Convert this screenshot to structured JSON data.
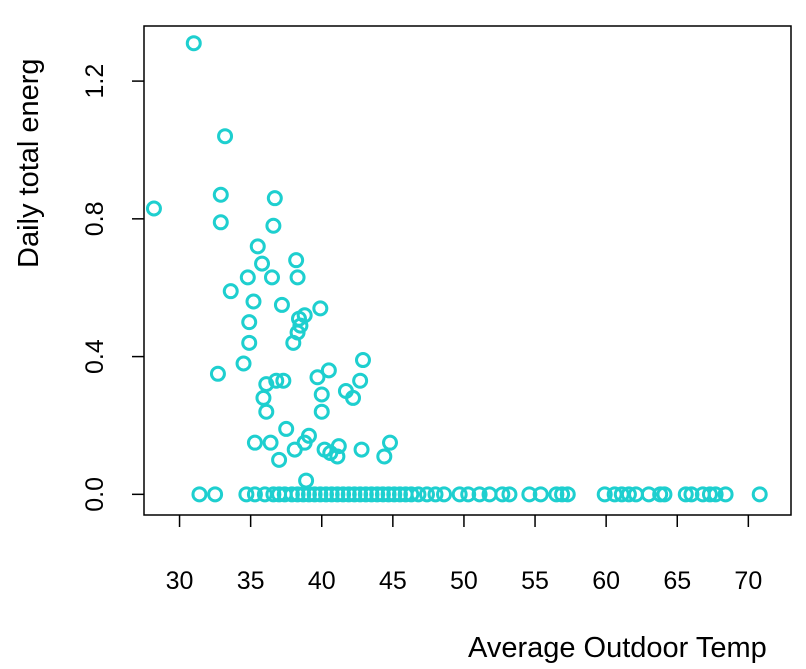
{
  "chart_data": {
    "type": "scatter",
    "xlabel": "Average Outdoor Temp",
    "ylabel": "Daily total energ",
    "xlim": [
      27.5,
      73
    ],
    "ylim": [
      -0.06,
      1.36
    ],
    "x_ticks": [
      30,
      35,
      40,
      45,
      50,
      55,
      60,
      65,
      70
    ],
    "x_tick_labels": [
      "30",
      "35",
      "40",
      "45",
      "50",
      "55",
      "60",
      "65",
      "70"
    ],
    "y_ticks": [
      0.0,
      0.4,
      0.8,
      1.2
    ],
    "y_tick_labels": [
      "0.0",
      "0.4",
      "0.8",
      "1.2"
    ],
    "grid": false,
    "marker": "open-circle",
    "color": "#1ecfcf",
    "points": [
      [
        28.2,
        0.83
      ],
      [
        31.0,
        1.31
      ],
      [
        33.2,
        1.04
      ],
      [
        32.9,
        0.87
      ],
      [
        32.9,
        0.79
      ],
      [
        36.7,
        0.86
      ],
      [
        36.6,
        0.78
      ],
      [
        35.5,
        0.72
      ],
      [
        35.8,
        0.67
      ],
      [
        34.8,
        0.63
      ],
      [
        36.5,
        0.63
      ],
      [
        38.2,
        0.68
      ],
      [
        38.3,
        0.63
      ],
      [
        33.6,
        0.59
      ],
      [
        35.2,
        0.56
      ],
      [
        37.2,
        0.55
      ],
      [
        39.9,
        0.54
      ],
      [
        38.4,
        0.51
      ],
      [
        38.8,
        0.52
      ],
      [
        38.5,
        0.49
      ],
      [
        38.3,
        0.47
      ],
      [
        38.0,
        0.44
      ],
      [
        34.9,
        0.5
      ],
      [
        34.9,
        0.44
      ],
      [
        34.5,
        0.38
      ],
      [
        32.7,
        0.35
      ],
      [
        36.8,
        0.33
      ],
      [
        37.3,
        0.33
      ],
      [
        36.1,
        0.32
      ],
      [
        35.9,
        0.28
      ],
      [
        36.1,
        0.24
      ],
      [
        39.7,
        0.34
      ],
      [
        40.5,
        0.36
      ],
      [
        40.0,
        0.29
      ],
      [
        40.0,
        0.24
      ],
      [
        41.7,
        0.3
      ],
      [
        42.2,
        0.28
      ],
      [
        42.7,
        0.33
      ],
      [
        42.9,
        0.39
      ],
      [
        37.5,
        0.19
      ],
      [
        35.3,
        0.15
      ],
      [
        36.4,
        0.15
      ],
      [
        38.8,
        0.15
      ],
      [
        39.1,
        0.17
      ],
      [
        38.1,
        0.13
      ],
      [
        40.2,
        0.13
      ],
      [
        40.6,
        0.12
      ],
      [
        41.1,
        0.11
      ],
      [
        41.2,
        0.14
      ],
      [
        42.8,
        0.13
      ],
      [
        37.0,
        0.1
      ],
      [
        44.4,
        0.11
      ],
      [
        44.8,
        0.15
      ],
      [
        38.9,
        0.04
      ],
      [
        31.4,
        0.0
      ],
      [
        32.5,
        0.0
      ],
      [
        34.7,
        0.0
      ],
      [
        35.3,
        0.0
      ],
      [
        36.0,
        0.0
      ],
      [
        36.6,
        0.0
      ],
      [
        37.0,
        0.0
      ],
      [
        37.4,
        0.0
      ],
      [
        37.9,
        0.0
      ],
      [
        38.3,
        0.0
      ],
      [
        38.7,
        0.0
      ],
      [
        39.1,
        0.0
      ],
      [
        39.5,
        0.0
      ],
      [
        39.9,
        0.0
      ],
      [
        40.3,
        0.0
      ],
      [
        40.7,
        0.0
      ],
      [
        41.1,
        0.0
      ],
      [
        41.5,
        0.0
      ],
      [
        41.9,
        0.0
      ],
      [
        42.3,
        0.0
      ],
      [
        42.7,
        0.0
      ],
      [
        43.1,
        0.0
      ],
      [
        43.5,
        0.0
      ],
      [
        43.9,
        0.0
      ],
      [
        44.3,
        0.0
      ],
      [
        44.7,
        0.0
      ],
      [
        45.1,
        0.0
      ],
      [
        45.5,
        0.0
      ],
      [
        45.9,
        0.0
      ],
      [
        46.3,
        0.0
      ],
      [
        46.8,
        0.0
      ],
      [
        47.4,
        0.0
      ],
      [
        48.0,
        0.0
      ],
      [
        48.6,
        0.0
      ],
      [
        49.7,
        0.0
      ],
      [
        50.3,
        0.0
      ],
      [
        51.1,
        0.0
      ],
      [
        51.8,
        0.0
      ],
      [
        52.7,
        0.0
      ],
      [
        53.2,
        0.0
      ],
      [
        54.6,
        0.0
      ],
      [
        55.4,
        0.0
      ],
      [
        56.5,
        0.0
      ],
      [
        56.9,
        0.0
      ],
      [
        57.3,
        0.0
      ],
      [
        59.9,
        0.0
      ],
      [
        60.6,
        0.0
      ],
      [
        61.1,
        0.0
      ],
      [
        61.6,
        0.0
      ],
      [
        62.1,
        0.0
      ],
      [
        63.0,
        0.0
      ],
      [
        63.8,
        0.0
      ],
      [
        64.1,
        0.0
      ],
      [
        65.6,
        0.0
      ],
      [
        66.0,
        0.0
      ],
      [
        66.8,
        0.0
      ],
      [
        67.3,
        0.0
      ],
      [
        67.7,
        0.0
      ],
      [
        68.4,
        0.0
      ],
      [
        70.8,
        0.0
      ]
    ]
  }
}
